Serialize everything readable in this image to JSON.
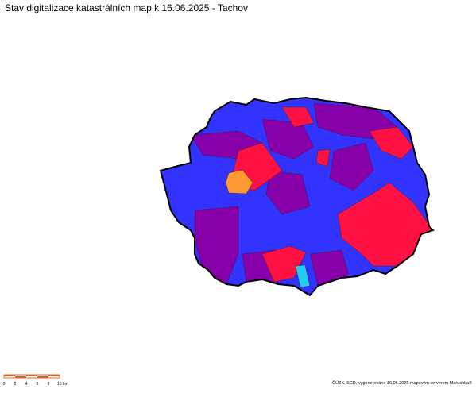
{
  "header": {
    "title": "Stav digitalizace katastrálních map k 16.06.2025 - Tachov"
  },
  "scale_bar": {
    "labels": [
      "0",
      "2",
      "4",
      "6",
      "8",
      "10 km"
    ]
  },
  "footer": {
    "credit": "ČÚZK, SCD, vygenerováno 16.06.2025 mapovým serverem Marushka®"
  }
}
